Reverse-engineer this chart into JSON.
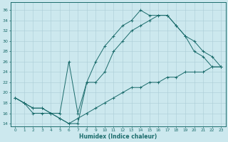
{
  "xlabel": "Humidex (Indice chaleur)",
  "bg_color": "#cce8ee",
  "line_color": "#1a6b6b",
  "grid_color": "#aacdd6",
  "spine_color": "#1a6b6b",
  "xlim": [
    -0.5,
    23.5
  ],
  "ylim": [
    13.5,
    37.5
  ],
  "xticks": [
    0,
    1,
    2,
    3,
    4,
    5,
    6,
    7,
    8,
    9,
    10,
    11,
    12,
    13,
    14,
    15,
    16,
    17,
    18,
    19,
    20,
    21,
    22,
    23
  ],
  "yticks": [
    14,
    16,
    18,
    20,
    22,
    24,
    26,
    28,
    30,
    32,
    34,
    36
  ],
  "line1_x": [
    0,
    1,
    2,
    3,
    4,
    5,
    6,
    7,
    8,
    9,
    10,
    11,
    12,
    13,
    14,
    15,
    16,
    17,
    18,
    19,
    20,
    21,
    22,
    23
  ],
  "line1_y": [
    19,
    18,
    17,
    17,
    16,
    15,
    14,
    14,
    22,
    26,
    29,
    31,
    33,
    34,
    36,
    35,
    35,
    35,
    33,
    31,
    28,
    27,
    25,
    25
  ],
  "line2_x": [
    0,
    1,
    2,
    3,
    4,
    5,
    6,
    7,
    8,
    9,
    10,
    11,
    12,
    13,
    14,
    15,
    16,
    17,
    18,
    19,
    20,
    21,
    22,
    23
  ],
  "line2_y": [
    19,
    18,
    16,
    16,
    16,
    15,
    14,
    15,
    16,
    17,
    18,
    19,
    20,
    21,
    21,
    22,
    22,
    23,
    23,
    24,
    24,
    24,
    25,
    25
  ],
  "line3_x": [
    0,
    1,
    2,
    3,
    4,
    5,
    6,
    7,
    8,
    9,
    10,
    11,
    12,
    13,
    14,
    15,
    16,
    17,
    18,
    19,
    20,
    21,
    22,
    23
  ],
  "line3_y": [
    19,
    18,
    17,
    17,
    16,
    16,
    26,
    16,
    22,
    22,
    24,
    28,
    30,
    32,
    33,
    34,
    35,
    35,
    33,
    31,
    30,
    28,
    27,
    25
  ]
}
